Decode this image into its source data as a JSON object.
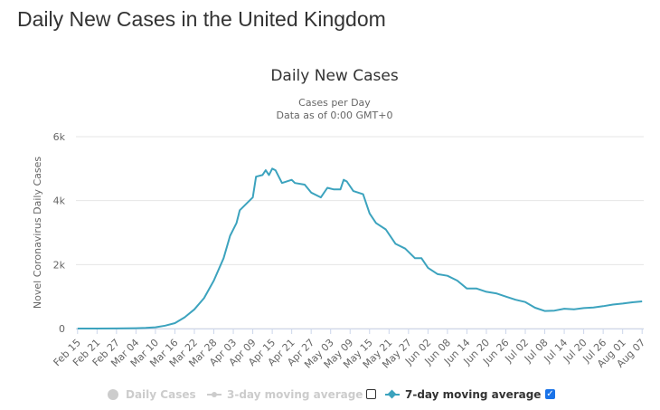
{
  "page": {
    "title": "Daily New Cases in the United Kingdom"
  },
  "chart_data": {
    "type": "line",
    "title": "Daily New Cases",
    "subtitle_line1": "Cases per Day",
    "subtitle_line2": "Data as of 0:00 GMT+0",
    "ylabel": "Novel Coronavirus Daily Cases",
    "xlabel": "",
    "ylim": [
      0,
      6000
    ],
    "y_ticks": [
      {
        "value": 0,
        "label": "0"
      },
      {
        "value": 2000,
        "label": "2k"
      },
      {
        "value": 4000,
        "label": "4k"
      },
      {
        "value": 6000,
        "label": "6k"
      }
    ],
    "x_ticks": [
      "Feb 15",
      "Feb 21",
      "Feb 27",
      "Mar 04",
      "Mar 10",
      "Mar 16",
      "Mar 22",
      "Mar 28",
      "Apr 03",
      "Apr 09",
      "Apr 15",
      "Apr 21",
      "Apr 27",
      "May 03",
      "May 09",
      "May 15",
      "May 21",
      "May 27",
      "Jun 02",
      "Jun 08",
      "Jun 14",
      "Jun 20",
      "Jun 26",
      "Jul 02",
      "Jul 08",
      "Jul 14",
      "Jul 20",
      "Jul 26",
      "Aug 01",
      "Aug 07"
    ],
    "grid": true,
    "legend_position": "bottom",
    "series": [
      {
        "name": "7-day moving average",
        "color": "#3ca3be",
        "visible": true,
        "points": [
          {
            "x": "Feb 15",
            "y": 0
          },
          {
            "x": "Feb 21",
            "y": 0
          },
          {
            "x": "Feb 27",
            "y": 2
          },
          {
            "x": "Mar 04",
            "y": 10
          },
          {
            "x": "Mar 07",
            "y": 20
          },
          {
            "x": "Mar 10",
            "y": 40
          },
          {
            "x": "Mar 13",
            "y": 90
          },
          {
            "x": "Mar 16",
            "y": 170
          },
          {
            "x": "Mar 19",
            "y": 350
          },
          {
            "x": "Mar 22",
            "y": 600
          },
          {
            "x": "Mar 25",
            "y": 950
          },
          {
            "x": "Mar 28",
            "y": 1500
          },
          {
            "x": "Mar 31",
            "y": 2200
          },
          {
            "x": "Apr 02",
            "y": 2900
          },
          {
            "x": "Apr 04",
            "y": 3300
          },
          {
            "x": "Apr 05",
            "y": 3700
          },
          {
            "x": "Apr 07",
            "y": 3900
          },
          {
            "x": "Apr 09",
            "y": 4100
          },
          {
            "x": "Apr 10",
            "y": 4750
          },
          {
            "x": "Apr 12",
            "y": 4800
          },
          {
            "x": "Apr 13",
            "y": 4950
          },
          {
            "x": "Apr 14",
            "y": 4800
          },
          {
            "x": "Apr 15",
            "y": 5000
          },
          {
            "x": "Apr 16",
            "y": 4950
          },
          {
            "x": "Apr 18",
            "y": 4550
          },
          {
            "x": "Apr 21",
            "y": 4650
          },
          {
            "x": "Apr 22",
            "y": 4550
          },
          {
            "x": "Apr 25",
            "y": 4500
          },
          {
            "x": "Apr 27",
            "y": 4250
          },
          {
            "x": "Apr 30",
            "y": 4100
          },
          {
            "x": "May 02",
            "y": 4400
          },
          {
            "x": "May 04",
            "y": 4350
          },
          {
            "x": "May 06",
            "y": 4350
          },
          {
            "x": "May 07",
            "y": 4650
          },
          {
            "x": "May 08",
            "y": 4600
          },
          {
            "x": "May 10",
            "y": 4300
          },
          {
            "x": "May 13",
            "y": 4200
          },
          {
            "x": "May 15",
            "y": 3600
          },
          {
            "x": "May 17",
            "y": 3300
          },
          {
            "x": "May 20",
            "y": 3100
          },
          {
            "x": "May 23",
            "y": 2650
          },
          {
            "x": "May 26",
            "y": 2500
          },
          {
            "x": "May 29",
            "y": 2200
          },
          {
            "x": "May 31",
            "y": 2200
          },
          {
            "x": "Jun 02",
            "y": 1900
          },
          {
            "x": "Jun 05",
            "y": 1700
          },
          {
            "x": "Jun 08",
            "y": 1650
          },
          {
            "x": "Jun 11",
            "y": 1500
          },
          {
            "x": "Jun 14",
            "y": 1250
          },
          {
            "x": "Jun 17",
            "y": 1250
          },
          {
            "x": "Jun 20",
            "y": 1150
          },
          {
            "x": "Jun 23",
            "y": 1100
          },
          {
            "x": "Jun 26",
            "y": 1000
          },
          {
            "x": "Jun 29",
            "y": 900
          },
          {
            "x": "Jul 02",
            "y": 830
          },
          {
            "x": "Jul 05",
            "y": 650
          },
          {
            "x": "Jul 08",
            "y": 550
          },
          {
            "x": "Jul 11",
            "y": 560
          },
          {
            "x": "Jul 14",
            "y": 620
          },
          {
            "x": "Jul 17",
            "y": 600
          },
          {
            "x": "Jul 20",
            "y": 640
          },
          {
            "x": "Jul 23",
            "y": 660
          },
          {
            "x": "Jul 26",
            "y": 700
          },
          {
            "x": "Jul 29",
            "y": 750
          },
          {
            "x": "Aug 01",
            "y": 780
          },
          {
            "x": "Aug 04",
            "y": 820
          },
          {
            "x": "Aug 07",
            "y": 850
          }
        ]
      }
    ]
  },
  "legend": {
    "items": [
      {
        "label": "Daily Cases",
        "color": "#cccccc",
        "enabled": false
      },
      {
        "label": "3-day moving average",
        "color": "#cccccc",
        "enabled": false,
        "checked": false
      },
      {
        "label": "7-day moving average",
        "color": "#3ca3be",
        "enabled": true,
        "checked": true
      }
    ]
  }
}
